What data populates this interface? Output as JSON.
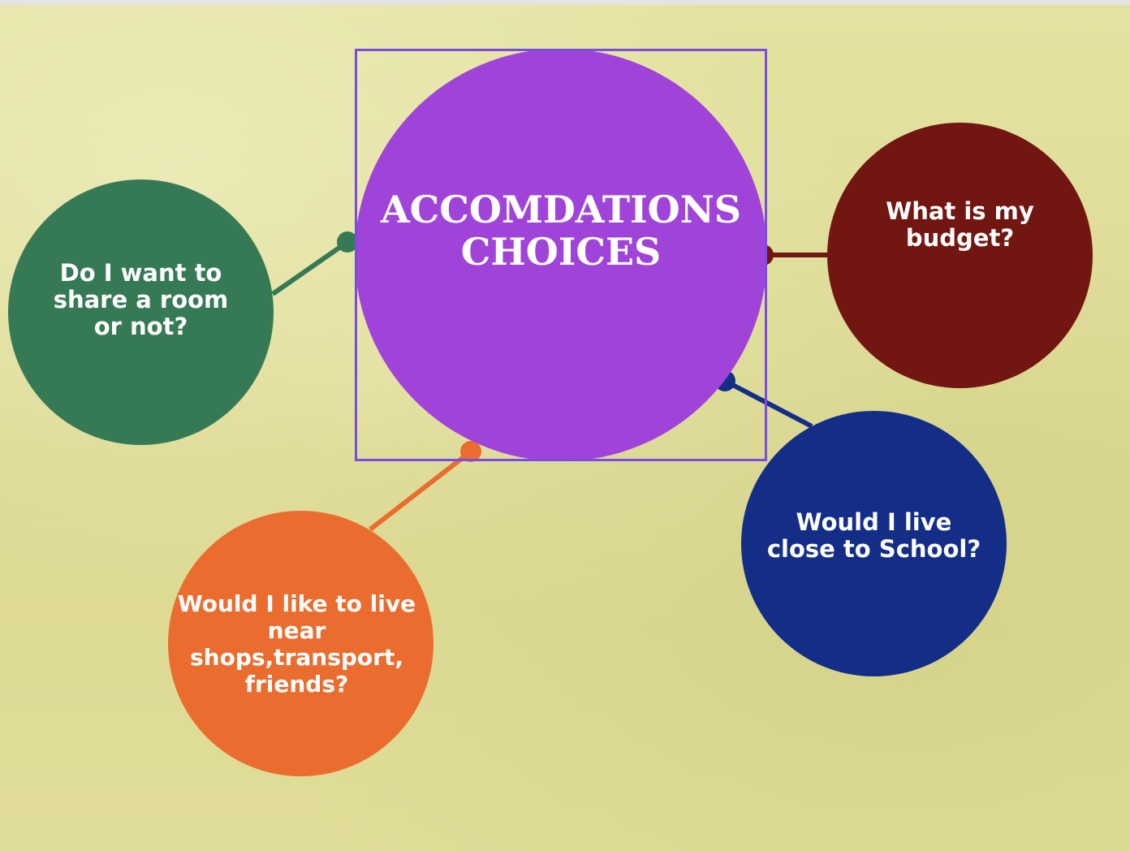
{
  "diagram": {
    "center": {
      "line1": "ACCOMDATIONS",
      "line2": "CHOICES",
      "color": "#a044d9",
      "selection_color": "#7a4de0"
    },
    "nodes": [
      {
        "id": "share",
        "lines": [
          "Do I want to",
          "share a room",
          "or not?"
        ],
        "color": "#367a55"
      },
      {
        "id": "budget",
        "lines": [
          "What is my",
          "budget?"
        ],
        "color": "#721612"
      },
      {
        "id": "school",
        "lines": [
          "Would I  live",
          "close to School?"
        ],
        "color": "#142e88"
      },
      {
        "id": "shops",
        "lines": [
          "Would I like to live",
          "near",
          "shops,transport,",
          "friends?"
        ],
        "color": "#ea6d2f"
      }
    ]
  }
}
